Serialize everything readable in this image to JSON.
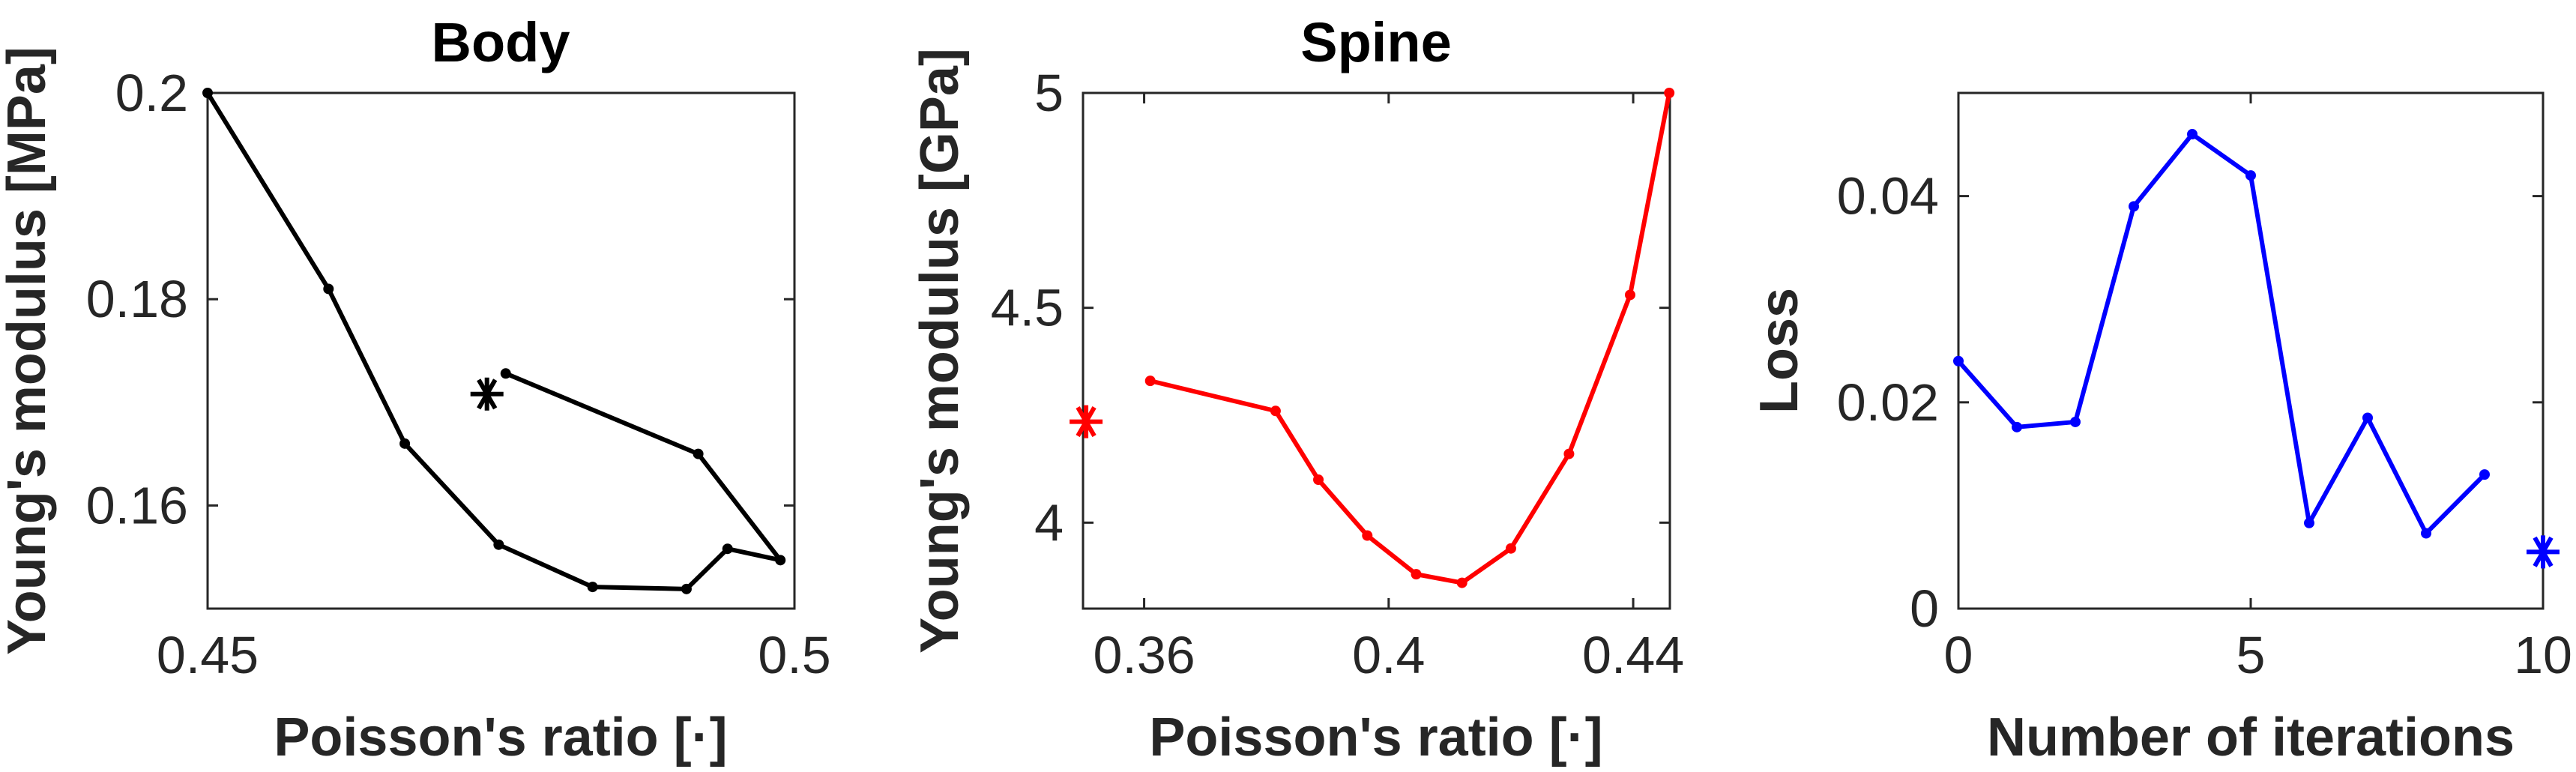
{
  "chart_data": [
    {
      "type": "line",
      "title": "Body",
      "xlabel": "Poisson's ratio [·]",
      "ylabel": "Young's modulus [MPa]",
      "xlim": [
        0.45,
        0.5
      ],
      "ylim": [
        0.15,
        0.2
      ],
      "xticks": [
        "0.45",
        "0.5"
      ],
      "yticks": [
        "0.16",
        "0.18",
        "0.2"
      ],
      "color": "#000000",
      "grid": false,
      "series": [
        {
          "x": [
            0.45,
            0.4603,
            0.4668,
            0.4748,
            0.4828,
            0.4908,
            0.4943,
            0.4988,
            0.4918,
            0.4754
          ],
          "y": [
            0.2,
            0.181,
            0.166,
            0.1562,
            0.1521,
            0.1519,
            0.1558,
            0.1547,
            0.165,
            0.1728
          ]
        }
      ],
      "final_marker": {
        "x": 0.4738,
        "y": 0.1708
      }
    },
    {
      "type": "line",
      "title": "Spine",
      "xlabel": "Poisson's ratio [·]",
      "ylabel": "Young's modulus [GPa]",
      "xlim": [
        0.35,
        0.446
      ],
      "ylim": [
        3.8,
        5.0
      ],
      "xticks": [
        "0.36",
        "0.4",
        "0.44"
      ],
      "yticks": [
        "4",
        "4.5",
        "5"
      ],
      "color": "#ff0000",
      "grid": false,
      "series": [
        {
          "x": [
            0.361,
            0.3815,
            0.3885,
            0.3965,
            0.4045,
            0.412,
            0.42,
            0.4295,
            0.4395,
            0.4459
          ],
          "y": [
            4.33,
            4.26,
            4.1,
            3.97,
            3.88,
            3.86,
            3.94,
            4.16,
            4.53,
            5.0
          ]
        }
      ],
      "final_marker": {
        "x": 0.3505,
        "y": 4.235
      }
    },
    {
      "type": "line",
      "title": "",
      "xlabel": "Number of iterations",
      "ylabel": "Loss",
      "xlim": [
        0,
        10
      ],
      "ylim": [
        0,
        0.05
      ],
      "xticks": [
        "0",
        "5",
        "10"
      ],
      "yticks": [
        "0",
        "0.02",
        "0.04"
      ],
      "color": "#0000ff",
      "grid": false,
      "series": [
        {
          "x": [
            0,
            1,
            2,
            3,
            4,
            5,
            6,
            7,
            8,
            9
          ],
          "y": [
            0.024,
            0.0176,
            0.0181,
            0.039,
            0.046,
            0.042,
            0.0083,
            0.0185,
            0.0073,
            0.013
          ]
        }
      ],
      "final_marker": {
        "x": 10,
        "y": 0.0055
      }
    }
  ]
}
